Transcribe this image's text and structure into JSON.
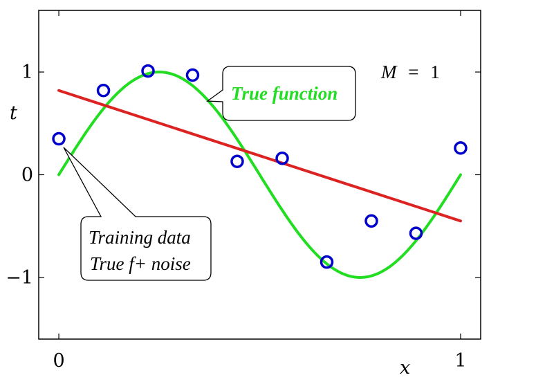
{
  "chart_data": {
    "type": "line",
    "title": "",
    "xlabel": "x",
    "ylabel": "t",
    "xlim": [
      -0.05,
      1.05
    ],
    "ylim": [
      -1.6,
      1.6
    ],
    "x_ticks": [
      0,
      1
    ],
    "x_tick_labels": [
      "0",
      "1"
    ],
    "y_ticks": [
      1,
      0,
      -1
    ],
    "y_tick_labels": [
      "1",
      "0",
      "−1"
    ],
    "grid": false,
    "model_label": {
      "symbol": "M",
      "relation": "=",
      "value": "1"
    },
    "series": [
      {
        "kind": "curve",
        "function": "sin(2*pi*x)",
        "color": "#22dd22",
        "x_range": [
          0,
          1
        ]
      },
      {
        "kind": "fit",
        "color": "#dd2222",
        "x": [
          0,
          1
        ],
        "y": [
          0.82,
          -0.45
        ]
      },
      {
        "kind": "points",
        "color": "#0000cc",
        "x": [
          0,
          0.111,
          0.222,
          0.333,
          0.444,
          0.556,
          0.667,
          0.778,
          0.889,
          1.0
        ],
        "y": [
          0.35,
          0.82,
          1.01,
          0.97,
          0.13,
          0.16,
          -0.85,
          -0.45,
          -0.57,
          0.26
        ]
      }
    ],
    "annotations": [
      {
        "lines": [
          "True function"
        ],
        "color": "#22dd22",
        "bold": true
      },
      {
        "lines": [
          "Training data",
          "True f+ noise"
        ],
        "color": "#000000",
        "bold": false
      }
    ]
  }
}
